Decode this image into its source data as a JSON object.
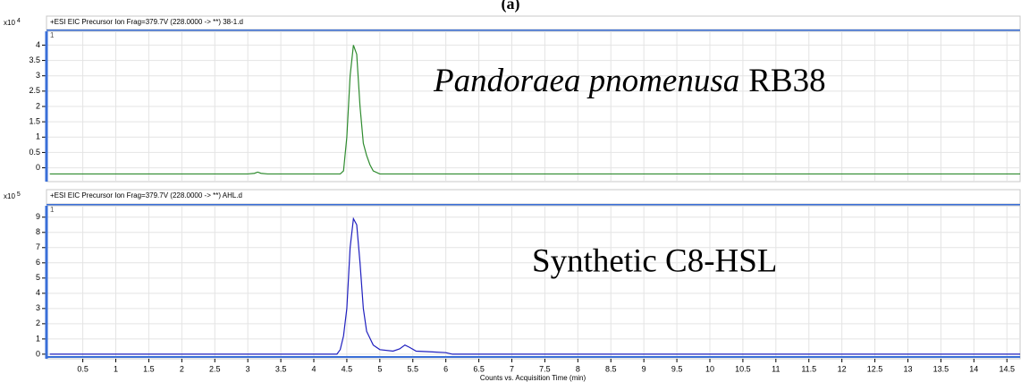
{
  "figure_label": "(a)",
  "chart_data": [
    {
      "type": "line",
      "header": "+ESI EIC Precursor Ion Frag=379.7V (228.0000 -> **) 38-1.d",
      "y_multiplier": {
        "base": "x10",
        "exp": "4"
      },
      "marker_label": "1",
      "annotation": [
        "Pandoraea pnomenusa",
        "RB38"
      ],
      "x": [
        0,
        3.0,
        3.1,
        3.15,
        3.2,
        3.3,
        4.4,
        4.45,
        4.5,
        4.55,
        4.6,
        4.65,
        4.7,
        4.75,
        4.8,
        4.85,
        4.9,
        5.0,
        14.7
      ],
      "series": [
        {
          "name": "38-1.d",
          "color": "#2e8b2e",
          "values": [
            -0.2,
            -0.2,
            -0.18,
            -0.14,
            -0.18,
            -0.2,
            -0.2,
            -0.1,
            1.0,
            3.0,
            4.0,
            3.7,
            2.0,
            0.8,
            0.4,
            0.1,
            -0.1,
            -0.2,
            -0.2
          ]
        }
      ],
      "xlim": [
        -0.05,
        14.7
      ],
      "xticks": [
        0.5,
        1,
        1.5,
        2,
        2.5,
        3,
        3.5,
        4,
        4.5,
        5,
        5.5,
        6,
        6.5,
        7,
        7.5,
        8,
        8.5,
        9,
        9.5,
        10,
        10.5,
        11,
        11.5,
        12,
        12.5,
        13,
        13.5,
        14,
        14.5
      ],
      "ylim": [
        -0.45,
        4.45
      ],
      "yticks": [
        0,
        0.5,
        1,
        1.5,
        2,
        2.5,
        3,
        3.5,
        4
      ],
      "grid": true
    },
    {
      "type": "line",
      "header": "+ESI EIC Precursor Ion Frag=379.7V (228.0000 -> **) AHL.d",
      "y_multiplier": {
        "base": "x10",
        "exp": "5"
      },
      "marker_label": "1",
      "annotation": [
        "Synthetic C8-HSL"
      ],
      "x": [
        0,
        4.35,
        4.4,
        4.45,
        4.5,
        4.55,
        4.6,
        4.65,
        4.7,
        4.75,
        4.8,
        4.9,
        5.0,
        5.2,
        5.3,
        5.38,
        5.45,
        5.55,
        5.8,
        6.0,
        6.1,
        14.7
      ],
      "series": [
        {
          "name": "AHL.d",
          "color": "#1f1fbf",
          "values": [
            0,
            0,
            0.3,
            1.2,
            3.0,
            7.0,
            8.9,
            8.5,
            6.0,
            3.0,
            1.5,
            0.6,
            0.3,
            0.2,
            0.35,
            0.6,
            0.45,
            0.2,
            0.15,
            0.1,
            0,
            0
          ]
        }
      ],
      "xlim": [
        -0.05,
        14.7
      ],
      "xticks": [
        0.5,
        1,
        1.5,
        2,
        2.5,
        3,
        3.5,
        4,
        4.5,
        5,
        5.5,
        6,
        6.5,
        7,
        7.5,
        8,
        8.5,
        9,
        9.5,
        10,
        10.5,
        11,
        11.5,
        12,
        12.5,
        13,
        13.5,
        14,
        14.5
      ],
      "xlabel": "Counts vs. Acquisition Time (min)",
      "ylim": [
        -0.3,
        9.75
      ],
      "yticks": [
        0,
        1,
        2,
        3,
        4,
        5,
        6,
        7,
        8,
        9
      ],
      "grid": true
    }
  ]
}
